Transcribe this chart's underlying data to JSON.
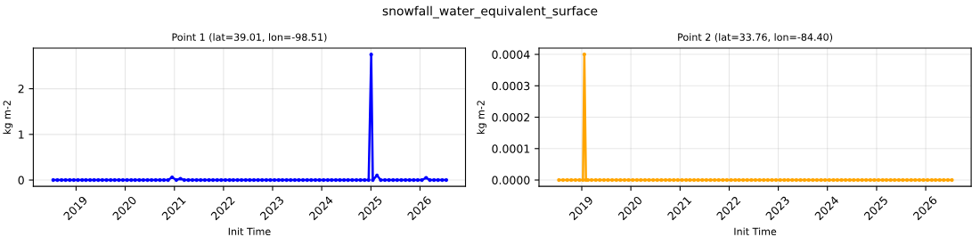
{
  "chart_data": [
    {
      "type": "line",
      "annotations": [
        "snowfall_water_equivalent_surface"
      ],
      "title": "Point 1 (lat=39.01, lon=-98.51)",
      "xlabel": "Init Time",
      "ylabel": "kg m-2",
      "marker": "circle",
      "grid": true,
      "xlim": [
        "2018-02-17",
        "2026-12-05"
      ],
      "xticks": [
        {
          "value": "2019-01-01",
          "label": "2019"
        },
        {
          "value": "2020-01-01",
          "label": "2020"
        },
        {
          "value": "2021-01-01",
          "label": "2021"
        },
        {
          "value": "2022-01-01",
          "label": "2022"
        },
        {
          "value": "2023-01-01",
          "label": "2023"
        },
        {
          "value": "2024-01-01",
          "label": "2024"
        },
        {
          "value": "2025-01-01",
          "label": "2025"
        },
        {
          "value": "2026-01-01",
          "label": "2026"
        }
      ],
      "ylim": [
        -0.137,
        2.89
      ],
      "yticks": [
        0,
        1,
        2
      ],
      "series": [
        {
          "color": "#0000ff",
          "x": [
            "2018-07-15",
            "2018-08-15",
            "2018-09-15",
            "2018-10-15",
            "2018-11-15",
            "2018-12-15",
            "2019-01-15",
            "2019-02-15",
            "2019-03-15",
            "2019-04-15",
            "2019-05-15",
            "2019-06-15",
            "2019-07-15",
            "2019-08-15",
            "2019-09-15",
            "2019-10-15",
            "2019-11-15",
            "2019-12-15",
            "2020-01-15",
            "2020-02-15",
            "2020-03-15",
            "2020-04-15",
            "2020-05-15",
            "2020-06-15",
            "2020-07-15",
            "2020-08-15",
            "2020-09-15",
            "2020-10-15",
            "2020-11-15",
            "2020-12-15",
            "2021-01-15",
            "2021-02-15",
            "2021-03-15",
            "2021-04-15",
            "2021-05-15",
            "2021-06-15",
            "2021-07-15",
            "2021-08-15",
            "2021-09-15",
            "2021-10-15",
            "2021-11-15",
            "2021-12-15",
            "2022-01-15",
            "2022-02-15",
            "2022-03-15",
            "2022-04-15",
            "2022-05-15",
            "2022-06-15",
            "2022-07-15",
            "2022-08-15",
            "2022-09-15",
            "2022-10-15",
            "2022-11-15",
            "2022-12-15",
            "2023-01-15",
            "2023-02-15",
            "2023-03-15",
            "2023-04-15",
            "2023-05-15",
            "2023-06-15",
            "2023-07-15",
            "2023-08-15",
            "2023-09-15",
            "2023-10-15",
            "2023-11-15",
            "2023-12-15",
            "2024-01-15",
            "2024-02-15",
            "2024-03-15",
            "2024-04-15",
            "2024-05-15",
            "2024-06-15",
            "2024-07-15",
            "2024-08-15",
            "2024-09-15",
            "2024-10-15",
            "2024-11-15",
            "2024-12-15",
            "2025-01-03",
            "2025-01-15",
            "2025-02-15",
            "2025-03-15",
            "2025-04-15",
            "2025-05-15",
            "2025-06-15",
            "2025-07-15",
            "2025-08-15",
            "2025-09-15",
            "2025-10-15",
            "2025-11-15",
            "2025-12-15",
            "2026-01-15",
            "2026-02-15",
            "2026-03-15",
            "2026-04-15",
            "2026-05-15",
            "2026-06-15",
            "2026-07-15"
          ],
          "values": [
            0,
            0,
            0,
            0,
            0,
            0,
            0,
            0,
            0,
            0,
            0,
            0,
            0,
            0,
            0,
            0,
            0,
            0,
            0,
            0,
            0,
            0,
            0,
            0,
            0,
            0,
            0,
            0,
            0,
            0.06,
            0,
            0.03,
            0,
            0,
            0,
            0,
            0,
            0,
            0,
            0,
            0,
            0,
            0,
            0,
            0,
            0,
            0,
            0,
            0,
            0,
            0,
            0,
            0,
            0,
            0,
            0,
            0,
            0,
            0,
            0,
            0,
            0,
            0,
            0,
            0,
            0,
            0,
            0,
            0,
            0,
            0,
            0,
            0,
            0,
            0,
            0,
            0,
            0,
            2.75,
            0,
            0.1,
            0,
            0,
            0,
            0,
            0,
            0,
            0,
            0,
            0,
            0,
            0,
            0.05,
            0,
            0,
            0,
            0,
            0
          ]
        }
      ]
    },
    {
      "type": "line",
      "title": "Point 2 (lat=33.76, lon=-84.40)",
      "xlabel": "Init Time",
      "ylabel": "kg m-2",
      "marker": "circle",
      "grid": true,
      "xlim": [
        "2018-02-17",
        "2026-12-05"
      ],
      "xticks": [
        {
          "value": "2019-01-01",
          "label": "2019"
        },
        {
          "value": "2020-01-01",
          "label": "2020"
        },
        {
          "value": "2021-01-01",
          "label": "2021"
        },
        {
          "value": "2022-01-01",
          "label": "2022"
        },
        {
          "value": "2023-01-01",
          "label": "2023"
        },
        {
          "value": "2024-01-01",
          "label": "2024"
        },
        {
          "value": "2025-01-01",
          "label": "2025"
        },
        {
          "value": "2026-01-01",
          "label": "2026"
        }
      ],
      "ylim": [
        -2e-05,
        0.00042
      ],
      "yticks": [
        {
          "value": 0,
          "label": "0.0000"
        },
        {
          "value": 0.0001,
          "label": "0.0001"
        },
        {
          "value": 0.0002,
          "label": "0.0002"
        },
        {
          "value": 0.0003,
          "label": "0.0003"
        },
        {
          "value": 0.0004,
          "label": "0.0004"
        }
      ],
      "series": [
        {
          "color": "#ffa500",
          "x": [
            "2018-07-15",
            "2018-08-15",
            "2018-09-15",
            "2018-10-15",
            "2018-11-15",
            "2018-12-15",
            "2019-01-10",
            "2019-01-20",
            "2019-02-01",
            "2019-02-15",
            "2019-03-15",
            "2019-04-15",
            "2019-05-15",
            "2019-06-15",
            "2019-07-15",
            "2019-08-15",
            "2019-09-15",
            "2019-10-15",
            "2019-11-15",
            "2019-12-15",
            "2020-01-15",
            "2020-02-15",
            "2020-03-15",
            "2020-04-15",
            "2020-05-15",
            "2020-06-15",
            "2020-07-15",
            "2020-08-15",
            "2020-09-15",
            "2020-10-15",
            "2020-11-15",
            "2020-12-15",
            "2021-01-15",
            "2021-02-15",
            "2021-03-15",
            "2021-04-15",
            "2021-05-15",
            "2021-06-15",
            "2021-07-15",
            "2021-08-15",
            "2021-09-15",
            "2021-10-15",
            "2021-11-15",
            "2021-12-15",
            "2022-01-15",
            "2022-02-15",
            "2022-03-15",
            "2022-04-15",
            "2022-05-15",
            "2022-06-15",
            "2022-07-15",
            "2022-08-15",
            "2022-09-15",
            "2022-10-15",
            "2022-11-15",
            "2022-12-15",
            "2023-01-15",
            "2023-02-15",
            "2023-03-15",
            "2023-04-15",
            "2023-05-15",
            "2023-06-15",
            "2023-07-15",
            "2023-08-15",
            "2023-09-15",
            "2023-10-15",
            "2023-11-15",
            "2023-12-15",
            "2024-01-15",
            "2024-02-15",
            "2024-03-15",
            "2024-04-15",
            "2024-05-15",
            "2024-06-15",
            "2024-07-15",
            "2024-08-15",
            "2024-09-15",
            "2024-10-15",
            "2024-11-15",
            "2024-12-15",
            "2025-01-15",
            "2025-02-15",
            "2025-03-15",
            "2025-04-15",
            "2025-05-15",
            "2025-06-15",
            "2025-07-15",
            "2025-08-15",
            "2025-09-15",
            "2025-10-15",
            "2025-11-15",
            "2025-12-15",
            "2026-01-15",
            "2026-02-15",
            "2026-03-15",
            "2026-04-15",
            "2026-05-15",
            "2026-06-15",
            "2026-07-15"
          ],
          "values": [
            0,
            0,
            0,
            0,
            0,
            0,
            0,
            0.0004,
            0,
            0,
            0,
            0,
            0,
            0,
            0,
            0,
            0,
            0,
            0,
            0,
            0,
            0,
            0,
            0,
            0,
            0,
            0,
            0,
            0,
            0,
            0,
            0,
            0,
            0,
            0,
            0,
            0,
            0,
            0,
            0,
            0,
            0,
            0,
            0,
            0,
            0,
            0,
            0,
            0,
            0,
            0,
            0,
            0,
            0,
            0,
            0,
            0,
            0,
            0,
            0,
            0,
            0,
            0,
            0,
            0,
            0,
            0,
            0,
            0,
            0,
            0,
            0,
            0,
            0,
            0,
            0,
            0,
            0,
            0,
            0,
            0,
            0,
            0,
            0,
            0,
            0,
            0,
            0,
            0,
            0,
            0,
            0,
            0,
            0,
            0,
            0,
            0,
            0,
            0
          ]
        }
      ]
    }
  ]
}
